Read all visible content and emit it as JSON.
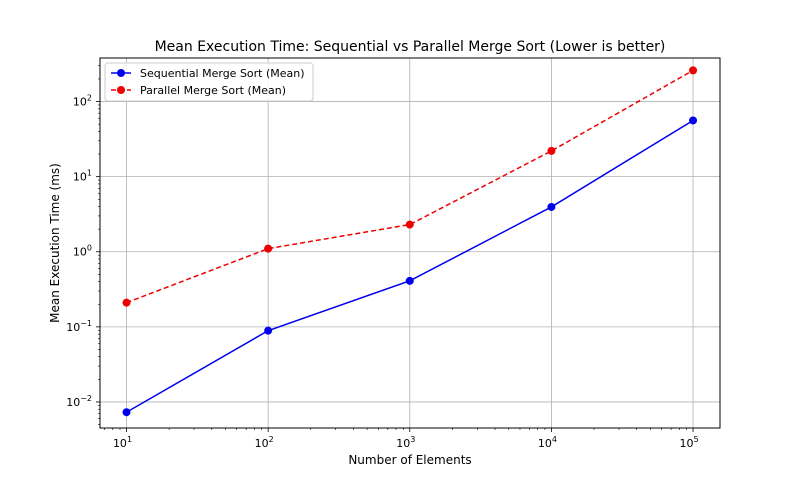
{
  "chart_data": {
    "type": "line",
    "title": "Mean Execution Time: Sequential vs Parallel Merge Sort (Lower is better)",
    "xlabel": "Number of Elements",
    "ylabel": "Mean Execution Time (ms)",
    "xscale": "log",
    "yscale": "log",
    "x": [
      10,
      100,
      1000,
      10000,
      100000
    ],
    "xlim": [
      6.5,
      155000
    ],
    "ylim": [
      0.0045,
      380
    ],
    "x_ticks": [
      {
        "value": 10,
        "base": "10",
        "exp": "1"
      },
      {
        "value": 100,
        "base": "10",
        "exp": "2"
      },
      {
        "value": 1000,
        "base": "10",
        "exp": "3"
      },
      {
        "value": 10000,
        "base": "10",
        "exp": "4"
      },
      {
        "value": 100000,
        "base": "10",
        "exp": "5"
      }
    ],
    "y_ticks": [
      {
        "value": 0.01,
        "base": "10",
        "exp": "−2"
      },
      {
        "value": 0.1,
        "base": "10",
        "exp": "−1"
      },
      {
        "value": 1,
        "base": "10",
        "exp": "0"
      },
      {
        "value": 10,
        "base": "10",
        "exp": "1"
      },
      {
        "value": 100,
        "base": "10",
        "exp": "2"
      }
    ],
    "grid": true,
    "legend_position": "top-left",
    "series": [
      {
        "name": "Sequential Merge Sort (Mean)",
        "color": "#0000ee",
        "line_style": "solid",
        "marker": "circle",
        "values": [
          0.0073,
          0.089,
          0.41,
          3.95,
          56
        ]
      },
      {
        "name": "Parallel Merge Sort (Mean)",
        "color": "#ee0000",
        "line_style": "dashed",
        "marker": "circle",
        "values": [
          0.21,
          1.1,
          2.3,
          22,
          260
        ]
      }
    ]
  }
}
